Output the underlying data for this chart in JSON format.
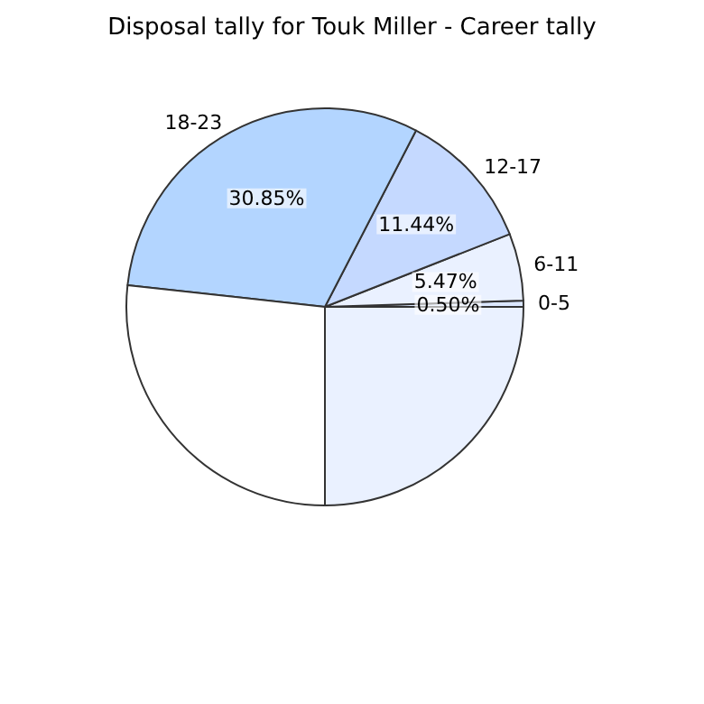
{
  "chart_data": {
    "type": "pie",
    "title": "Disposal tally for Touk Miller - Career tally",
    "categories": [
      "0-5",
      "6-11",
      "12-17",
      "18-23",
      null,
      null
    ],
    "values": [
      0.5,
      5.47,
      11.44,
      30.85,
      26.74,
      25.0
    ],
    "value_labels": [
      "0.50%",
      "5.47%",
      "11.44%",
      "30.85%",
      null,
      null
    ],
    "colors": [
      "#dce8ff",
      "#eaf1ff",
      "#c5d9ff",
      "#b3d5ff",
      "#ffffff",
      "#eaf1ff"
    ],
    "legend": false
  }
}
